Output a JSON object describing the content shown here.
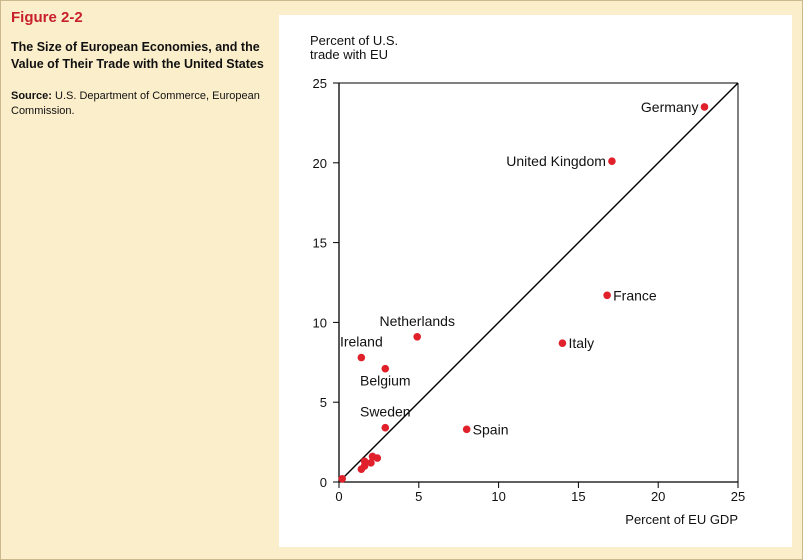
{
  "figure": {
    "label": "Figure 2-2",
    "title": "The Size of European Economies, and the Value of Their Trade with the United States",
    "source_label": "Source:",
    "source_text": "U.S. Department of Commerce, European Commission."
  },
  "colors": {
    "background": "#fbeecb",
    "label_red": "#c8202a",
    "point": "#e0202a",
    "line": "#000000"
  },
  "chart_data": {
    "type": "scatter",
    "title": "",
    "xlabel": "Percent of EU GDP",
    "ylabel": "Percent of U.S. trade with EU",
    "xlim": [
      0,
      25
    ],
    "ylim": [
      0,
      25
    ],
    "xticks": [
      0,
      5,
      10,
      15,
      20,
      25
    ],
    "yticks": [
      0,
      5,
      10,
      15,
      20,
      25
    ],
    "grid": false,
    "reference_line": {
      "from": [
        0,
        0
      ],
      "to": [
        25,
        25
      ]
    },
    "points": [
      {
        "label": "Germany",
        "x": 22.9,
        "y": 23.5,
        "label_side": "left"
      },
      {
        "label": "United Kingdom",
        "x": 17.1,
        "y": 20.1,
        "label_side": "left"
      },
      {
        "label": "France",
        "x": 16.8,
        "y": 11.7,
        "label_side": "right"
      },
      {
        "label": "Italy",
        "x": 14.0,
        "y": 8.7,
        "label_side": "right"
      },
      {
        "label": "Netherlands",
        "x": 4.9,
        "y": 9.1,
        "label_side": "above"
      },
      {
        "label": "Ireland",
        "x": 1.4,
        "y": 7.8,
        "label_side": "above"
      },
      {
        "label": "Belgium",
        "x": 2.9,
        "y": 7.1,
        "label_side": "below"
      },
      {
        "label": "Sweden",
        "x": 2.9,
        "y": 3.4,
        "label_side": "above"
      },
      {
        "label": "Spain",
        "x": 8.0,
        "y": 3.3,
        "label_side": "right"
      },
      {
        "label": "",
        "x": 0.2,
        "y": 0.2
      },
      {
        "label": "",
        "x": 1.4,
        "y": 0.8
      },
      {
        "label": "",
        "x": 1.6,
        "y": 1.0
      },
      {
        "label": "",
        "x": 1.6,
        "y": 1.3
      },
      {
        "label": "",
        "x": 2.0,
        "y": 1.2
      },
      {
        "label": "",
        "x": 2.1,
        "y": 1.6
      },
      {
        "label": "",
        "x": 2.4,
        "y": 1.5
      }
    ]
  }
}
